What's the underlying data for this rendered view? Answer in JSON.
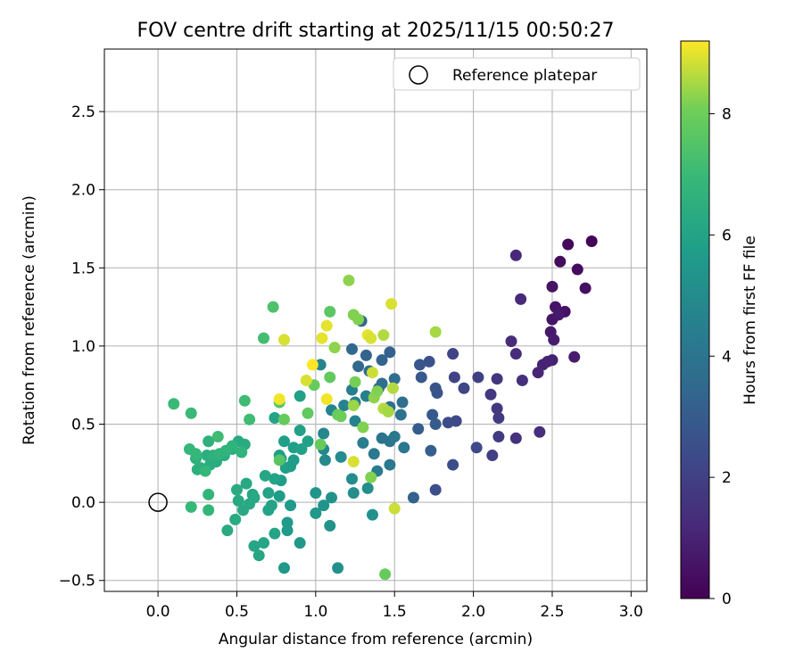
{
  "chart_data": {
    "type": "scatter",
    "title": "FOV centre drift starting at 2025/11/15 00:50:27",
    "xlabel": "Angular distance from reference (arcmin)",
    "ylabel": "Rotation from reference (arcmin)",
    "xlim": [
      -0.34,
      3.1
    ],
    "ylim": [
      -0.57,
      2.9
    ],
    "xticks": [
      0.0,
      0.5,
      1.0,
      1.5,
      2.0,
      2.5,
      3.0
    ],
    "xtick_labels": [
      "0.0",
      "0.5",
      "1.0",
      "1.5",
      "2.0",
      "2.5",
      "3.0"
    ],
    "yticks": [
      -0.5,
      0.0,
      0.5,
      1.0,
      1.5,
      2.0,
      2.5
    ],
    "ytick_labels": [
      "−0.5",
      "0.0",
      "0.5",
      "1.0",
      "1.5",
      "2.0",
      "2.5"
    ],
    "grid": true,
    "legend": {
      "placement": "top-right",
      "entries": [
        "Reference platepar"
      ]
    },
    "reference_marker": {
      "x": 0.0,
      "y": 0.0
    },
    "colorbar": {
      "label": "Hours from first FF file",
      "colormap": "viridis",
      "range": [
        0,
        9.2
      ],
      "ticks": [
        0,
        2,
        4,
        6,
        8
      ],
      "tick_labels": [
        "0",
        "2",
        "4",
        "6",
        "8"
      ]
    },
    "points": [
      {
        "x": 2.75,
        "y": 1.67,
        "c": 0.1
      },
      {
        "x": 2.6,
        "y": 1.65,
        "c": 0.2
      },
      {
        "x": 2.55,
        "y": 1.54,
        "c": 0.3
      },
      {
        "x": 2.66,
        "y": 1.49,
        "c": 0.3
      },
      {
        "x": 2.71,
        "y": 1.37,
        "c": 0.4
      },
      {
        "x": 2.5,
        "y": 1.38,
        "c": 0.5
      },
      {
        "x": 2.58,
        "y": 1.22,
        "c": 0.5
      },
      {
        "x": 2.52,
        "y": 1.25,
        "c": 0.6
      },
      {
        "x": 2.5,
        "y": 1.17,
        "c": 0.6
      },
      {
        "x": 2.54,
        "y": 1.2,
        "c": 0.7
      },
      {
        "x": 2.49,
        "y": 1.09,
        "c": 0.7
      },
      {
        "x": 2.51,
        "y": 1.04,
        "c": 0.8
      },
      {
        "x": 2.64,
        "y": 0.93,
        "c": 0.8
      },
      {
        "x": 2.5,
        "y": 0.91,
        "c": 0.9
      },
      {
        "x": 2.44,
        "y": 0.88,
        "c": 1.0
      },
      {
        "x": 2.47,
        "y": 0.9,
        "c": 1.0
      },
      {
        "x": 2.41,
        "y": 0.83,
        "c": 1.1
      },
      {
        "x": 2.3,
        "y": 1.3,
        "c": 1.2
      },
      {
        "x": 2.27,
        "y": 1.58,
        "c": 1.2
      },
      {
        "x": 2.24,
        "y": 1.03,
        "c": 1.3
      },
      {
        "x": 2.27,
        "y": 0.95,
        "c": 1.3
      },
      {
        "x": 2.31,
        "y": 0.78,
        "c": 1.4
      },
      {
        "x": 2.42,
        "y": 0.45,
        "c": 1.4
      },
      {
        "x": 2.27,
        "y": 0.41,
        "c": 1.5
      },
      {
        "x": 2.15,
        "y": 0.79,
        "c": 1.6
      },
      {
        "x": 2.11,
        "y": 0.69,
        "c": 1.7
      },
      {
        "x": 2.15,
        "y": 0.6,
        "c": 1.7
      },
      {
        "x": 2.16,
        "y": 0.54,
        "c": 1.8
      },
      {
        "x": 2.16,
        "y": 0.42,
        "c": 1.8
      },
      {
        "x": 2.12,
        "y": 0.3,
        "c": 1.9
      },
      {
        "x": 2.03,
        "y": 0.8,
        "c": 2.0
      },
      {
        "x": 1.88,
        "y": 0.8,
        "c": 2.1
      },
      {
        "x": 1.87,
        "y": 0.95,
        "c": 2.1
      },
      {
        "x": 1.94,
        "y": 0.73,
        "c": 2.2
      },
      {
        "x": 2.02,
        "y": 0.35,
        "c": 2.3
      },
      {
        "x": 1.89,
        "y": 0.52,
        "c": 2.3
      },
      {
        "x": 1.84,
        "y": 0.51,
        "c": 2.4
      },
      {
        "x": 1.87,
        "y": 0.24,
        "c": 2.5
      },
      {
        "x": 1.76,
        "y": 0.08,
        "c": 2.5
      },
      {
        "x": 1.72,
        "y": 0.9,
        "c": 2.6
      },
      {
        "x": 1.76,
        "y": 0.73,
        "c": 2.7
      },
      {
        "x": 1.77,
        "y": 0.7,
        "c": 2.7
      },
      {
        "x": 1.66,
        "y": 0.88,
        "c": 2.8
      },
      {
        "x": 1.67,
        "y": 0.8,
        "c": 2.9
      },
      {
        "x": 1.74,
        "y": 0.56,
        "c": 2.9
      },
      {
        "x": 1.76,
        "y": 0.5,
        "c": 3.0
      },
      {
        "x": 1.65,
        "y": 0.47,
        "c": 3.0
      },
      {
        "x": 1.73,
        "y": 0.33,
        "c": 3.1
      },
      {
        "x": 1.62,
        "y": 0.03,
        "c": 3.2
      },
      {
        "x": 1.47,
        "y": 0.96,
        "c": 3.2
      },
      {
        "x": 1.42,
        "y": 0.91,
        "c": 3.3
      },
      {
        "x": 1.32,
        "y": 0.94,
        "c": 3.3
      },
      {
        "x": 1.29,
        "y": 1.16,
        "c": 3.4
      },
      {
        "x": 1.23,
        "y": 0.98,
        "c": 3.5
      },
      {
        "x": 1.27,
        "y": 0.87,
        "c": 3.5
      },
      {
        "x": 1.34,
        "y": 0.84,
        "c": 3.6
      },
      {
        "x": 1.4,
        "y": 0.73,
        "c": 3.6
      },
      {
        "x": 1.42,
        "y": 0.76,
        "c": 3.7
      },
      {
        "x": 1.5,
        "y": 0.79,
        "c": 3.7
      },
      {
        "x": 1.55,
        "y": 0.64,
        "c": 3.8
      },
      {
        "x": 1.47,
        "y": 0.61,
        "c": 3.8
      },
      {
        "x": 1.54,
        "y": 0.56,
        "c": 3.9
      },
      {
        "x": 1.42,
        "y": 0.41,
        "c": 4.0
      },
      {
        "x": 1.47,
        "y": 0.39,
        "c": 4.0
      },
      {
        "x": 1.5,
        "y": 0.42,
        "c": 4.1
      },
      {
        "x": 1.56,
        "y": 0.35,
        "c": 4.1
      },
      {
        "x": 1.37,
        "y": 0.31,
        "c": 4.2
      },
      {
        "x": 1.47,
        "y": 0.24,
        "c": 4.2
      },
      {
        "x": 1.39,
        "y": 0.2,
        "c": 4.3
      },
      {
        "x": 1.3,
        "y": 0.38,
        "c": 4.4
      },
      {
        "x": 1.23,
        "y": 0.72,
        "c": 4.4
      },
      {
        "x": 1.25,
        "y": 0.64,
        "c": 4.5
      },
      {
        "x": 1.32,
        "y": 0.68,
        "c": 4.5
      },
      {
        "x": 1.25,
        "y": 0.52,
        "c": 4.6
      },
      {
        "x": 1.18,
        "y": 0.62,
        "c": 4.6
      },
      {
        "x": 1.03,
        "y": 0.88,
        "c": 4.7
      },
      {
        "x": 1.1,
        "y": 0.59,
        "c": 4.7
      },
      {
        "x": 1.05,
        "y": 0.44,
        "c": 4.8
      },
      {
        "x": 1.05,
        "y": 0.34,
        "c": 4.8
      },
      {
        "x": 1.06,
        "y": 0.27,
        "c": 4.9
      },
      {
        "x": 1.16,
        "y": 0.29,
        "c": 5.0
      },
      {
        "x": 1.23,
        "y": 0.15,
        "c": 5.0
      },
      {
        "x": 1.24,
        "y": 0.06,
        "c": 5.1
      },
      {
        "x": 1.33,
        "y": 0.09,
        "c": 5.1
      },
      {
        "x": 1.36,
        "y": -0.08,
        "c": 5.2
      },
      {
        "x": 1.14,
        "y": -0.42,
        "c": 5.2
      },
      {
        "x": 1.09,
        "y": -0.15,
        "c": 5.3
      },
      {
        "x": 1.1,
        "y": 0.03,
        "c": 5.3
      },
      {
        "x": 1.0,
        "y": 0.06,
        "c": 5.4
      },
      {
        "x": 1.05,
        "y": -0.02,
        "c": 5.4
      },
      {
        "x": 1.0,
        "y": -0.07,
        "c": 5.5
      },
      {
        "x": 0.9,
        "y": -0.26,
        "c": 5.5
      },
      {
        "x": 0.8,
        "y": -0.42,
        "c": 5.5
      },
      {
        "x": 0.82,
        "y": -0.18,
        "c": 5.6
      },
      {
        "x": 0.82,
        "y": -0.13,
        "c": 5.6
      },
      {
        "x": 0.84,
        "y": -0.02,
        "c": 5.6
      },
      {
        "x": 0.77,
        "y": 0.04,
        "c": 5.7
      },
      {
        "x": 0.78,
        "y": 0.14,
        "c": 5.7
      },
      {
        "x": 0.84,
        "y": 0.23,
        "c": 5.7
      },
      {
        "x": 0.86,
        "y": 0.27,
        "c": 5.7
      },
      {
        "x": 0.81,
        "y": 0.22,
        "c": 5.8
      },
      {
        "x": 0.78,
        "y": 0.28,
        "c": 5.8
      },
      {
        "x": 0.77,
        "y": 0.3,
        "c": 5.8
      },
      {
        "x": 0.8,
        "y": 0.39,
        "c": 5.8
      },
      {
        "x": 0.86,
        "y": 0.35,
        "c": 5.8
      },
      {
        "x": 0.91,
        "y": 0.34,
        "c": 5.9
      },
      {
        "x": 0.95,
        "y": 0.39,
        "c": 5.9
      },
      {
        "x": 0.9,
        "y": 0.46,
        "c": 5.9
      },
      {
        "x": 0.9,
        "y": 0.68,
        "c": 5.9
      },
      {
        "x": 0.74,
        "y": 0.54,
        "c": 6.0
      },
      {
        "x": 0.74,
        "y": 0.15,
        "c": 6.0
      },
      {
        "x": 0.7,
        "y": 0.06,
        "c": 6.0
      },
      {
        "x": 0.72,
        "y": -0.02,
        "c": 6.0
      },
      {
        "x": 0.74,
        "y": -0.2,
        "c": 6.0
      },
      {
        "x": 0.7,
        "y": -0.05,
        "c": 6.0
      },
      {
        "x": 0.68,
        "y": 0.17,
        "c": 6.1
      },
      {
        "x": 0.64,
        "y": -0.34,
        "c": 6.1
      },
      {
        "x": 0.67,
        "y": -0.26,
        "c": 6.1
      },
      {
        "x": 0.61,
        "y": -0.28,
        "c": 6.1
      },
      {
        "x": 0.6,
        "y": 0.05,
        "c": 6.1
      },
      {
        "x": 0.61,
        "y": 0.03,
        "c": 6.2
      },
      {
        "x": 0.56,
        "y": 0.12,
        "c": 6.2
      },
      {
        "x": 0.58,
        "y": -0.01,
        "c": 6.2
      },
      {
        "x": 0.54,
        "y": -0.05,
        "c": 6.2
      },
      {
        "x": 0.51,
        "y": 0.01,
        "c": 6.2
      },
      {
        "x": 0.5,
        "y": 0.08,
        "c": 6.3
      },
      {
        "x": 0.44,
        "y": -0.18,
        "c": 6.3
      },
      {
        "x": 0.49,
        "y": -0.11,
        "c": 6.3
      },
      {
        "x": 0.55,
        "y": 0.37,
        "c": 6.3
      },
      {
        "x": 0.51,
        "y": 0.39,
        "c": 6.3
      },
      {
        "x": 0.47,
        "y": 0.34,
        "c": 6.4
      },
      {
        "x": 0.42,
        "y": 0.3,
        "c": 6.4
      },
      {
        "x": 0.37,
        "y": 0.26,
        "c": 6.4
      },
      {
        "x": 0.33,
        "y": 0.24,
        "c": 6.4
      },
      {
        "x": 0.31,
        "y": 0.3,
        "c": 6.5
      },
      {
        "x": 0.27,
        "y": 0.22,
        "c": 6.5
      },
      {
        "x": 0.25,
        "y": 0.21,
        "c": 6.5
      },
      {
        "x": 0.24,
        "y": 0.28,
        "c": 6.6
      },
      {
        "x": 0.32,
        "y": 0.39,
        "c": 6.6
      },
      {
        "x": 0.35,
        "y": 0.3,
        "c": 6.6
      },
      {
        "x": 0.39,
        "y": 0.31,
        "c": 6.7
      },
      {
        "x": 0.43,
        "y": 0.33,
        "c": 6.7
      },
      {
        "x": 0.47,
        "y": 0.36,
        "c": 6.7
      },
      {
        "x": 0.53,
        "y": 0.32,
        "c": 6.7
      },
      {
        "x": 0.32,
        "y": 0.05,
        "c": 6.8
      },
      {
        "x": 0.32,
        "y": -0.05,
        "c": 6.8
      },
      {
        "x": 0.21,
        "y": -0.03,
        "c": 6.9
      },
      {
        "x": 0.2,
        "y": 0.34,
        "c": 6.9
      },
      {
        "x": 0.24,
        "y": 0.31,
        "c": 6.9
      },
      {
        "x": 0.3,
        "y": 0.2,
        "c": 6.9
      },
      {
        "x": 0.21,
        "y": 0.57,
        "c": 7.0
      },
      {
        "x": 0.1,
        "y": 0.63,
        "c": 7.0
      },
      {
        "x": 0.38,
        "y": 0.42,
        "c": 7.1
      },
      {
        "x": 0.55,
        "y": 0.65,
        "c": 7.1
      },
      {
        "x": 0.58,
        "y": 0.53,
        "c": 7.1
      },
      {
        "x": 0.67,
        "y": 1.05,
        "c": 7.2
      },
      {
        "x": 0.73,
        "y": 1.25,
        "c": 7.4
      },
      {
        "x": 0.77,
        "y": 0.64,
        "c": 7.6
      },
      {
        "x": 0.77,
        "y": 0.27,
        "c": 7.6
      },
      {
        "x": 0.8,
        "y": 0.53,
        "c": 7.9
      },
      {
        "x": 0.95,
        "y": 0.57,
        "c": 7.8
      },
      {
        "x": 0.99,
        "y": 0.75,
        "c": 7.9
      },
      {
        "x": 1.03,
        "y": 0.37,
        "c": 7.9
      },
      {
        "x": 1.09,
        "y": 1.22,
        "c": 7.7
      },
      {
        "x": 1.09,
        "y": 0.8,
        "c": 7.8
      },
      {
        "x": 1.14,
        "y": 0.56,
        "c": 7.9
      },
      {
        "x": 1.16,
        "y": 0.55,
        "c": 8.0
      },
      {
        "x": 1.21,
        "y": 1.42,
        "c": 8.3
      },
      {
        "x": 1.24,
        "y": 1.2,
        "c": 8.2
      },
      {
        "x": 1.25,
        "y": 0.77,
        "c": 8.1
      },
      {
        "x": 1.27,
        "y": 1.17,
        "c": 8.2
      },
      {
        "x": 1.12,
        "y": 0.99,
        "c": 8.3
      },
      {
        "x": 1.24,
        "y": 0.62,
        "c": 8.4
      },
      {
        "x": 1.3,
        "y": 0.48,
        "c": 8.2
      },
      {
        "x": 1.35,
        "y": 0.16,
        "c": 8.2
      },
      {
        "x": 1.37,
        "y": 0.67,
        "c": 8.3
      },
      {
        "x": 1.39,
        "y": 0.71,
        "c": 8.2
      },
      {
        "x": 1.43,
        "y": 1.07,
        "c": 8.6
      },
      {
        "x": 1.43,
        "y": 0.6,
        "c": 8.6
      },
      {
        "x": 1.46,
        "y": 0.58,
        "c": 8.5
      },
      {
        "x": 1.48,
        "y": 1.27,
        "c": 8.9
      },
      {
        "x": 1.49,
        "y": 0.73,
        "c": 8.6
      },
      {
        "x": 1.5,
        "y": -0.04,
        "c": 8.8
      },
      {
        "x": 1.44,
        "y": -0.46,
        "c": 7.9
      },
      {
        "x": 1.33,
        "y": 1.07,
        "c": 9.0
      },
      {
        "x": 1.35,
        "y": 1.05,
        "c": 8.9
      },
      {
        "x": 1.36,
        "y": 0.83,
        "c": 8.8
      },
      {
        "x": 1.24,
        "y": 0.26,
        "c": 8.9
      },
      {
        "x": 1.07,
        "y": 1.13,
        "c": 9.0
      },
      {
        "x": 1.04,
        "y": 1.05,
        "c": 9.0
      },
      {
        "x": 1.07,
        "y": 0.66,
        "c": 9.1
      },
      {
        "x": 0.98,
        "y": 0.88,
        "c": 9.2
      },
      {
        "x": 0.8,
        "y": 1.04,
        "c": 8.9
      },
      {
        "x": 0.77,
        "y": 0.66,
        "c": 9.1
      },
      {
        "x": 0.94,
        "y": 0.78,
        "c": 8.9
      },
      {
        "x": 1.76,
        "y": 1.09,
        "c": 8.5
      }
    ]
  }
}
